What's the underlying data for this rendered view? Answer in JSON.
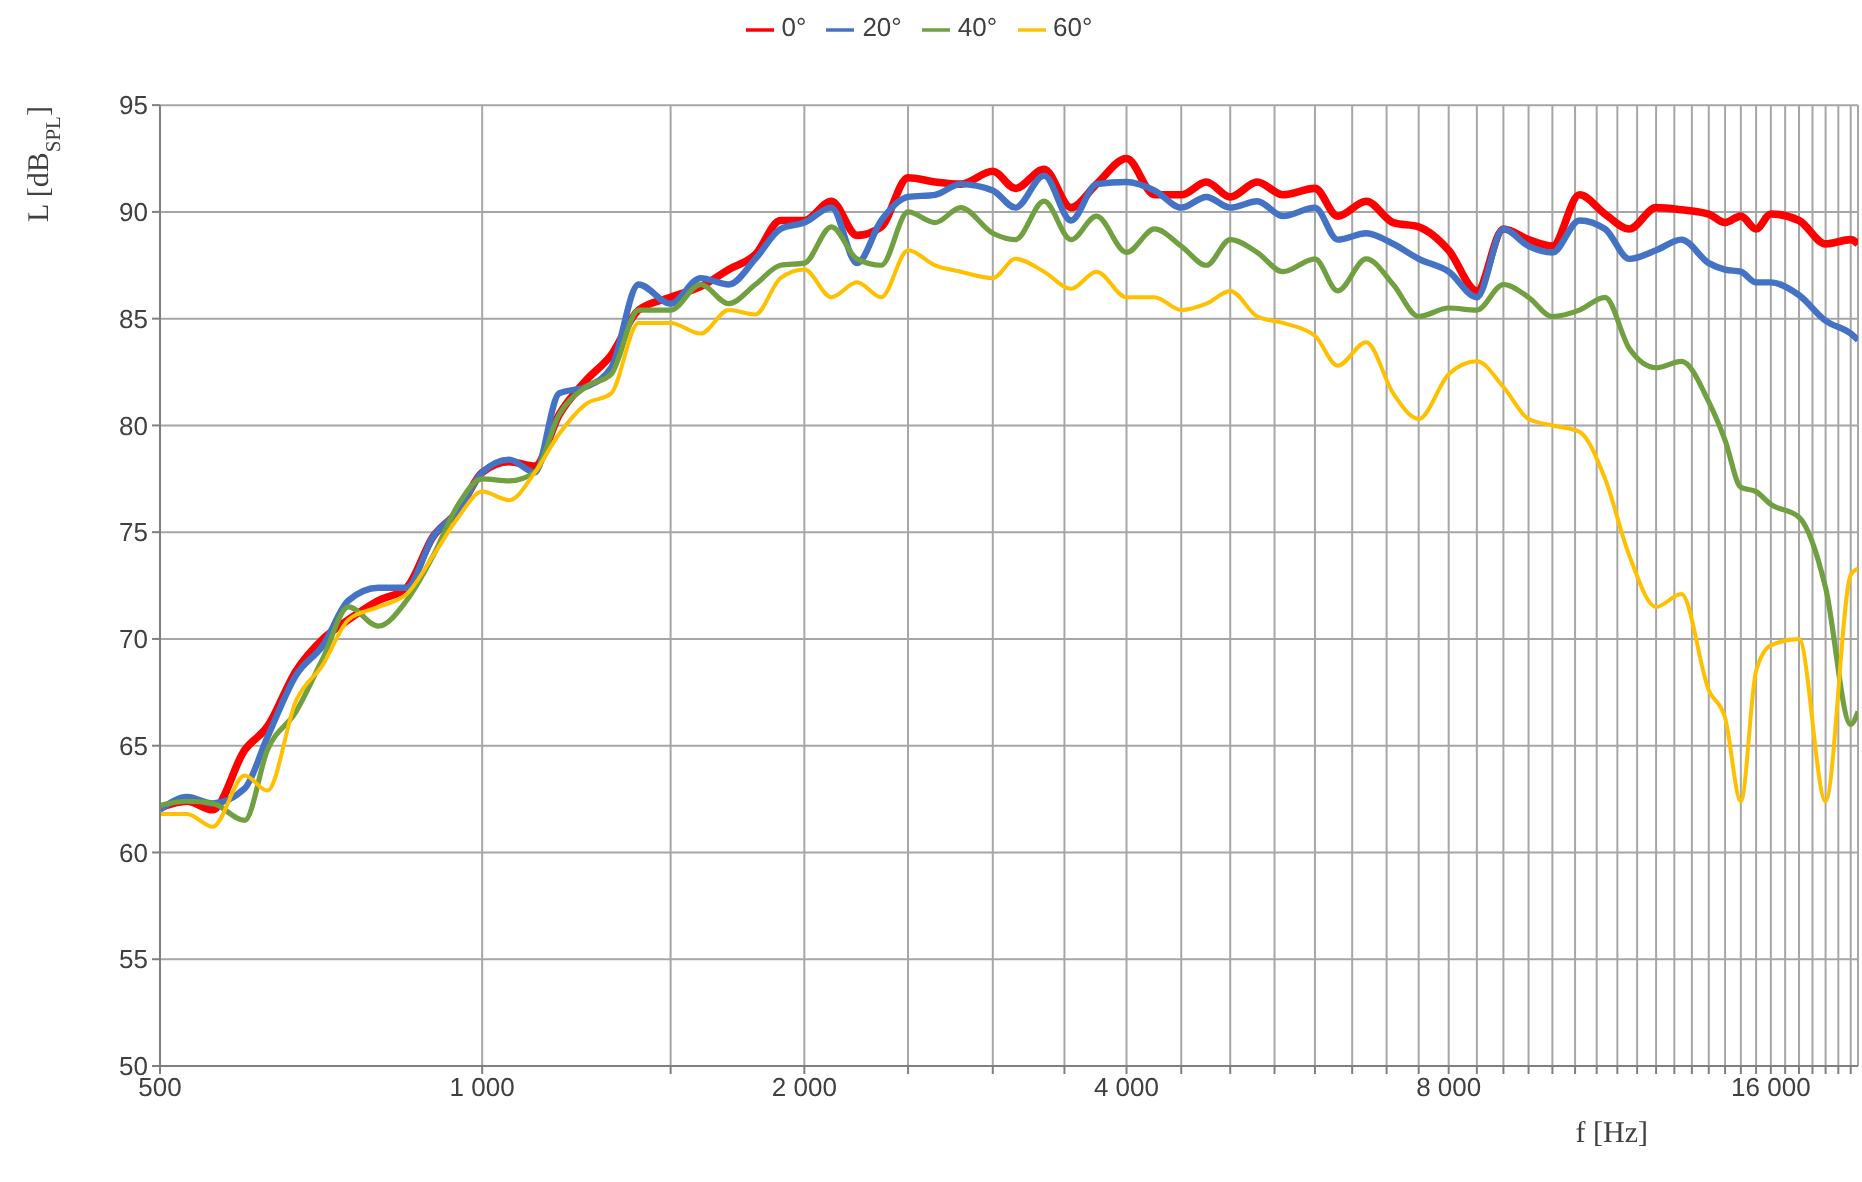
{
  "chart_data": {
    "type": "line",
    "xlabel": "f [Hz]",
    "ylabel": "L [dB$_{SPL}$]",
    "log": "x",
    "xlim": [
      500,
      19300
    ],
    "ylim": [
      50,
      95
    ],
    "yticks": [
      50,
      55,
      60,
      65,
      70,
      75,
      80,
      85,
      90,
      95
    ],
    "xticks": [
      {
        "value": 500,
        "label": "500"
      },
      {
        "value": 1000,
        "label": "1 000"
      },
      {
        "value": 1500,
        "label": null
      },
      {
        "value": 2000,
        "label": "2 000"
      },
      {
        "value": 2500,
        "label": null
      },
      {
        "value": 3000,
        "label": null
      },
      {
        "value": 3500,
        "label": null
      },
      {
        "value": 4000,
        "label": "4 000"
      },
      {
        "value": 4500,
        "label": null
      },
      {
        "value": 5000,
        "label": null
      },
      {
        "value": 5500,
        "label": null
      },
      {
        "value": 6000,
        "label": null
      },
      {
        "value": 6500,
        "label": null
      },
      {
        "value": 7000,
        "label": null
      },
      {
        "value": 7500,
        "label": null
      },
      {
        "value": 8000,
        "label": "8 000"
      },
      {
        "value": 8500,
        "label": null
      },
      {
        "value": 9000,
        "label": null
      },
      {
        "value": 9500,
        "label": null
      },
      {
        "value": 10000,
        "label": null
      },
      {
        "value": 10500,
        "label": null
      },
      {
        "value": 11000,
        "label": null
      },
      {
        "value": 11500,
        "label": null
      },
      {
        "value": 12000,
        "label": null
      },
      {
        "value": 12500,
        "label": null
      },
      {
        "value": 13000,
        "label": null
      },
      {
        "value": 13500,
        "label": null
      },
      {
        "value": 14000,
        "label": null
      },
      {
        "value": 14500,
        "label": null
      },
      {
        "value": 15000,
        "label": null
      },
      {
        "value": 15500,
        "label": null
      },
      {
        "value": 16000,
        "label": "16 000"
      },
      {
        "value": 16500,
        "label": null
      },
      {
        "value": 17000,
        "label": null
      },
      {
        "value": 17500,
        "label": null
      },
      {
        "value": 18000,
        "label": null
      },
      {
        "value": 18500,
        "label": null
      },
      {
        "value": 19000,
        "label": null
      }
    ],
    "grid": true,
    "legend": "top",
    "marker": "none",
    "line_style": "solid",
    "x": [
      500,
      530,
      560,
      600,
      630,
      670,
      710,
      750,
      800,
      850,
      900,
      950,
      1000,
      1060,
      1120,
      1180,
      1250,
      1320,
      1400,
      1500,
      1600,
      1700,
      1800,
      1900,
      2000,
      2120,
      2240,
      2360,
      2500,
      2650,
      2800,
      3000,
      3150,
      3350,
      3550,
      3750,
      4000,
      4250,
      4500,
      4750,
      5000,
      5300,
      5600,
      6000,
      6300,
      6700,
      7100,
      7500,
      8000,
      8500,
      9000,
      9500,
      10000,
      10600,
      11200,
      11800,
      12500,
      13200,
      14000,
      14500,
      15000,
      15500,
      16000,
      17000,
      18000,
      19000,
      19300
    ],
    "series": [
      {
        "name": "0°",
        "color": "#ff0000",
        "values": [
          62.1,
          62.4,
          62,
          64.8,
          65.9,
          68.5,
          70,
          70.9,
          71.8,
          72.4,
          74.8,
          76,
          77.8,
          78.3,
          78.1,
          80.5,
          82.1,
          83.3,
          85.4,
          86,
          86.5,
          87.3,
          88,
          89.6,
          89.6,
          90.5,
          88.9,
          89.3,
          91.6,
          91.4,
          91.3,
          91.9,
          91.1,
          92,
          90.2,
          91.3,
          92.5,
          90.8,
          90.8,
          91.4,
          90.7,
          91.4,
          90.8,
          91.1,
          89.8,
          90.5,
          89.5,
          89.3,
          88.2,
          86.3,
          89.2,
          88.7,
          88.4,
          90.8,
          89.9,
          89.2,
          90.2,
          90.1,
          89.9,
          89.5,
          89.8,
          89.2,
          89.9,
          89.6,
          88.5,
          88.7,
          88.5
        ]
      },
      {
        "name": "20°",
        "color": "#4472c4",
        "values": [
          62,
          62.6,
          62.3,
          63,
          65.4,
          68.3,
          69.7,
          71.8,
          72.4,
          72.4,
          74.8,
          76,
          77.8,
          78.4,
          77.8,
          81.5,
          81.8,
          82.7,
          86.6,
          85.7,
          86.9,
          86.6,
          87.8,
          89.2,
          89.5,
          90.2,
          87.6,
          89.6,
          90.7,
          90.8,
          91.3,
          91,
          90.2,
          91.7,
          89.6,
          91.3,
          91.4,
          91,
          90.2,
          90.7,
          90.2,
          90.5,
          89.8,
          90.2,
          88.7,
          89,
          88.5,
          87.8,
          87.2,
          86,
          89.2,
          88.4,
          88.1,
          89.6,
          89.2,
          87.8,
          88.2,
          88.7,
          87.6,
          87.3,
          87.2,
          86.7,
          86.7,
          86.1,
          84.9,
          84.3,
          84
        ]
      },
      {
        "name": "40°",
        "color": "#70a040",
        "values": [
          62.2,
          62.4,
          62.3,
          61.5,
          64.8,
          66.6,
          69.1,
          71.5,
          70.6,
          71.8,
          73.9,
          76.3,
          77.5,
          77.4,
          77.8,
          80.5,
          81.8,
          82.4,
          85.4,
          85.4,
          86.6,
          85.7,
          86.6,
          87.5,
          87.6,
          89.3,
          87.8,
          87.5,
          90,
          89.5,
          90.2,
          89,
          88.7,
          90.5,
          88.7,
          89.8,
          88.1,
          89.2,
          88.4,
          87.5,
          88.7,
          88.1,
          87.2,
          87.8,
          86.3,
          87.8,
          86.6,
          85.1,
          85.5,
          85.4,
          86.6,
          86,
          85.1,
          85.4,
          86,
          83.6,
          82.7,
          83,
          81.1,
          79.3,
          77.1,
          76.9,
          76.3,
          75.7,
          72.4,
          66,
          66.6
        ]
      },
      {
        "name": "60°",
        "color": "#ffc000",
        "values": [
          61.8,
          61.8,
          61.2,
          63.6,
          62.9,
          67.1,
          68.8,
          70.9,
          71.5,
          72.1,
          73.9,
          75.7,
          76.9,
          76.5,
          77.8,
          79.6,
          81,
          81.5,
          84.8,
          84.8,
          84.3,
          85.4,
          85.2,
          86.9,
          87.3,
          86,
          86.7,
          86,
          88.2,
          87.5,
          87.2,
          86.9,
          87.8,
          87.2,
          86.4,
          87.2,
          86,
          86,
          85.4,
          85.7,
          86.3,
          85.1,
          84.8,
          84.2,
          82.8,
          83.9,
          81.5,
          80.3,
          82.4,
          83,
          81.8,
          80.3,
          80,
          79.7,
          77.5,
          73.9,
          71.5,
          72.1,
          67.6,
          66.3,
          62.4,
          68.5,
          69.7,
          70,
          62.4,
          73,
          73.3
        ]
      }
    ]
  }
}
